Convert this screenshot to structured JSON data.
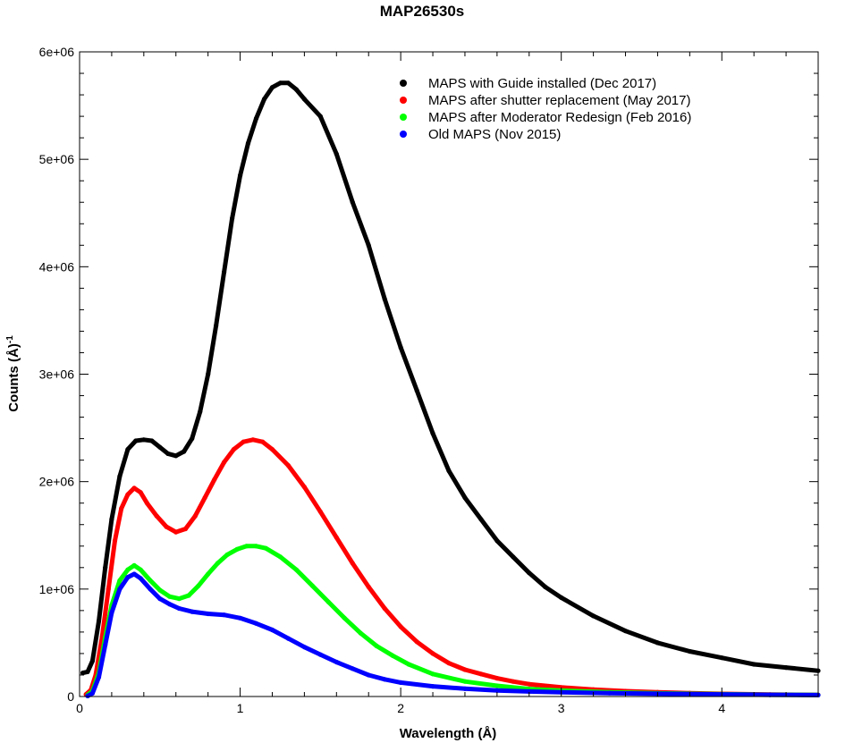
{
  "chart_data": {
    "type": "scatter",
    "title": "MAP26530s",
    "xlabel": "Wavelength (Å)",
    "ylabel_main": "Counts (Å)",
    "ylabel_sup": "-1",
    "xlim": [
      0,
      4.6
    ],
    "ylim": [
      0,
      6000000
    ],
    "x_ticks": [
      0,
      1,
      2,
      3,
      4
    ],
    "x_tick_labels": [
      "0",
      "1",
      "2",
      "3",
      "4"
    ],
    "y_ticks": [
      0,
      1000000,
      2000000,
      3000000,
      4000000,
      5000000,
      6000000
    ],
    "y_tick_labels": [
      "0",
      "1e+06",
      "2e+06",
      "3e+06",
      "4e+06",
      "5e+06",
      "6e+06"
    ],
    "grid": false,
    "legend_position": "top-right",
    "series": [
      {
        "name": "MAPS with Guide installed (Dec 2017)",
        "color": "#000000",
        "points": [
          [
            0.02,
            220000
          ],
          [
            0.05,
            230000
          ],
          [
            0.08,
            330000
          ],
          [
            0.12,
            700000
          ],
          [
            0.16,
            1200000
          ],
          [
            0.2,
            1650000
          ],
          [
            0.25,
            2050000
          ],
          [
            0.3,
            2300000
          ],
          [
            0.35,
            2380000
          ],
          [
            0.4,
            2390000
          ],
          [
            0.45,
            2380000
          ],
          [
            0.5,
            2320000
          ],
          [
            0.55,
            2260000
          ],
          [
            0.6,
            2240000
          ],
          [
            0.65,
            2280000
          ],
          [
            0.7,
            2400000
          ],
          [
            0.75,
            2650000
          ],
          [
            0.8,
            3000000
          ],
          [
            0.85,
            3450000
          ],
          [
            0.9,
            3950000
          ],
          [
            0.95,
            4450000
          ],
          [
            1.0,
            4850000
          ],
          [
            1.05,
            5150000
          ],
          [
            1.1,
            5380000
          ],
          [
            1.15,
            5560000
          ],
          [
            1.2,
            5670000
          ],
          [
            1.25,
            5710000
          ],
          [
            1.3,
            5710000
          ],
          [
            1.35,
            5650000
          ],
          [
            1.4,
            5560000
          ],
          [
            1.5,
            5400000
          ],
          [
            1.6,
            5050000
          ],
          [
            1.7,
            4600000
          ],
          [
            1.8,
            4200000
          ],
          [
            1.9,
            3700000
          ],
          [
            2.0,
            3250000
          ],
          [
            2.1,
            2850000
          ],
          [
            2.2,
            2450000
          ],
          [
            2.3,
            2100000
          ],
          [
            2.4,
            1850000
          ],
          [
            2.5,
            1650000
          ],
          [
            2.6,
            1450000
          ],
          [
            2.7,
            1300000
          ],
          [
            2.8,
            1150000
          ],
          [
            2.9,
            1020000
          ],
          [
            3.0,
            920000
          ],
          [
            3.2,
            750000
          ],
          [
            3.4,
            610000
          ],
          [
            3.6,
            500000
          ],
          [
            3.8,
            420000
          ],
          [
            4.0,
            360000
          ],
          [
            4.2,
            300000
          ],
          [
            4.4,
            270000
          ],
          [
            4.6,
            240000
          ]
        ]
      },
      {
        "name": "MAPS after shutter replacement (May 2017)",
        "color": "#ff0000",
        "points": [
          [
            0.04,
            20000
          ],
          [
            0.07,
            60000
          ],
          [
            0.1,
            200000
          ],
          [
            0.14,
            550000
          ],
          [
            0.18,
            1000000
          ],
          [
            0.22,
            1450000
          ],
          [
            0.26,
            1750000
          ],
          [
            0.3,
            1880000
          ],
          [
            0.34,
            1940000
          ],
          [
            0.38,
            1900000
          ],
          [
            0.42,
            1800000
          ],
          [
            0.48,
            1680000
          ],
          [
            0.54,
            1580000
          ],
          [
            0.6,
            1530000
          ],
          [
            0.66,
            1560000
          ],
          [
            0.72,
            1680000
          ],
          [
            0.78,
            1850000
          ],
          [
            0.84,
            2020000
          ],
          [
            0.9,
            2180000
          ],
          [
            0.96,
            2300000
          ],
          [
            1.02,
            2370000
          ],
          [
            1.08,
            2390000
          ],
          [
            1.14,
            2370000
          ],
          [
            1.2,
            2300000
          ],
          [
            1.3,
            2150000
          ],
          [
            1.4,
            1950000
          ],
          [
            1.5,
            1720000
          ],
          [
            1.6,
            1480000
          ],
          [
            1.7,
            1240000
          ],
          [
            1.8,
            1020000
          ],
          [
            1.9,
            820000
          ],
          [
            2.0,
            650000
          ],
          [
            2.1,
            510000
          ],
          [
            2.2,
            400000
          ],
          [
            2.3,
            310000
          ],
          [
            2.4,
            250000
          ],
          [
            2.5,
            210000
          ],
          [
            2.6,
            170000
          ],
          [
            2.7,
            140000
          ],
          [
            2.8,
            115000
          ],
          [
            3.0,
            85000
          ],
          [
            3.2,
            65000
          ],
          [
            3.4,
            50000
          ],
          [
            3.6,
            40000
          ],
          [
            3.8,
            32000
          ],
          [
            4.0,
            25000
          ],
          [
            4.3,
            18000
          ],
          [
            4.6,
            15000
          ]
        ]
      },
      {
        "name": "MAPS after Moderator Redesign (Feb 2016)",
        "color": "#00ff00",
        "points": [
          [
            0.05,
            15000
          ],
          [
            0.08,
            50000
          ],
          [
            0.12,
            220000
          ],
          [
            0.16,
            550000
          ],
          [
            0.2,
            850000
          ],
          [
            0.25,
            1080000
          ],
          [
            0.3,
            1180000
          ],
          [
            0.34,
            1220000
          ],
          [
            0.38,
            1180000
          ],
          [
            0.44,
            1080000
          ],
          [
            0.5,
            990000
          ],
          [
            0.56,
            930000
          ],
          [
            0.62,
            910000
          ],
          [
            0.68,
            940000
          ],
          [
            0.74,
            1030000
          ],
          [
            0.8,
            1140000
          ],
          [
            0.86,
            1240000
          ],
          [
            0.92,
            1320000
          ],
          [
            0.98,
            1370000
          ],
          [
            1.04,
            1400000
          ],
          [
            1.1,
            1400000
          ],
          [
            1.16,
            1380000
          ],
          [
            1.25,
            1300000
          ],
          [
            1.35,
            1180000
          ],
          [
            1.45,
            1030000
          ],
          [
            1.55,
            880000
          ],
          [
            1.65,
            730000
          ],
          [
            1.75,
            590000
          ],
          [
            1.85,
            470000
          ],
          [
            1.95,
            380000
          ],
          [
            2.05,
            300000
          ],
          [
            2.2,
            210000
          ],
          [
            2.4,
            140000
          ],
          [
            2.6,
            100000
          ],
          [
            2.8,
            70000
          ],
          [
            3.0,
            55000
          ],
          [
            3.3,
            40000
          ],
          [
            3.6,
            30000
          ],
          [
            4.0,
            22000
          ],
          [
            4.3,
            17000
          ],
          [
            4.6,
            14000
          ]
        ]
      },
      {
        "name": "Old MAPS (Nov 2015)",
        "color": "#0000ff",
        "points": [
          [
            0.05,
            5000
          ],
          [
            0.08,
            30000
          ],
          [
            0.12,
            180000
          ],
          [
            0.16,
            480000
          ],
          [
            0.2,
            780000
          ],
          [
            0.25,
            1000000
          ],
          [
            0.3,
            1110000
          ],
          [
            0.34,
            1140000
          ],
          [
            0.38,
            1100000
          ],
          [
            0.44,
            1000000
          ],
          [
            0.5,
            910000
          ],
          [
            0.56,
            860000
          ],
          [
            0.62,
            820000
          ],
          [
            0.7,
            790000
          ],
          [
            0.8,
            770000
          ],
          [
            0.9,
            760000
          ],
          [
            1.0,
            730000
          ],
          [
            1.1,
            680000
          ],
          [
            1.2,
            620000
          ],
          [
            1.3,
            540000
          ],
          [
            1.4,
            460000
          ],
          [
            1.5,
            390000
          ],
          [
            1.6,
            320000
          ],
          [
            1.7,
            260000
          ],
          [
            1.8,
            200000
          ],
          [
            1.9,
            160000
          ],
          [
            2.0,
            130000
          ],
          [
            2.2,
            95000
          ],
          [
            2.4,
            72000
          ],
          [
            2.6,
            57000
          ],
          [
            2.8,
            47000
          ],
          [
            3.0,
            40000
          ],
          [
            3.3,
            32000
          ],
          [
            3.6,
            26000
          ],
          [
            4.0,
            20000
          ],
          [
            4.3,
            16000
          ],
          [
            4.6,
            13000
          ]
        ]
      }
    ]
  }
}
